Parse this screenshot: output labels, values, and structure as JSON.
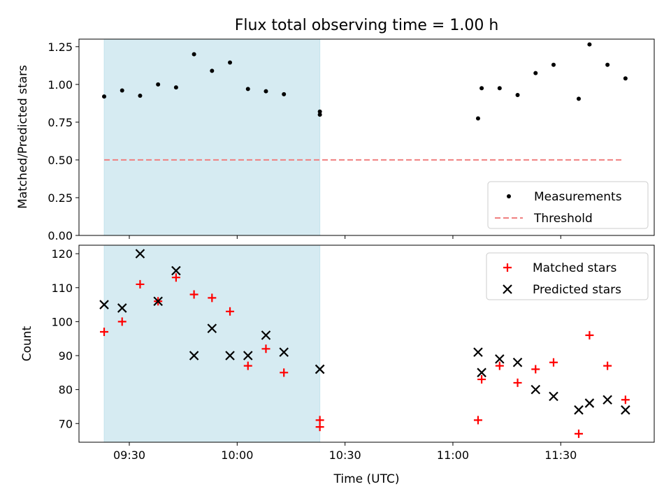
{
  "chart_data": [
    {
      "type": "scatter",
      "title": "Flux total observing time = 1.00 h",
      "xlabel": "",
      "ylabel": "Matched/Predicted stars",
      "ylim": [
        0,
        1.3
      ],
      "yticks": [
        0,
        0.25,
        0.5,
        0.75,
        1.0,
        1.25
      ],
      "ytick_labels": [
        "0.00",
        "0.25",
        "0.50",
        "0.75",
        "1.00",
        "1.25"
      ],
      "shaded_region": {
        "x_start": "09:23",
        "x_end": "10:23",
        "color": "#add8e6"
      },
      "threshold": {
        "value": 0.5,
        "x_start": "09:23",
        "x_end": "11:47",
        "color": "#f08080"
      },
      "legend": {
        "position": "bottom-right",
        "entries": [
          "Measurements",
          "Threshold"
        ]
      },
      "series": [
        {
          "name": "Measurements",
          "x": [
            "09:23",
            "09:28",
            "09:33",
            "09:38",
            "09:43",
            "09:48",
            "09:53",
            "09:58",
            "10:03",
            "10:08",
            "10:13",
            "10:23",
            "10:23",
            "11:07",
            "11:08",
            "11:13",
            "11:18",
            "11:23",
            "11:28",
            "11:35",
            "11:38",
            "11:43",
            "11:48"
          ],
          "values": [
            0.92,
            0.96,
            0.925,
            1.0,
            0.98,
            1.2,
            1.09,
            1.145,
            0.97,
            0.955,
            0.935,
            0.8,
            0.82,
            0.775,
            0.975,
            0.975,
            0.93,
            1.075,
            1.13,
            0.905,
            1.265,
            1.13,
            1.04
          ]
        }
      ]
    },
    {
      "type": "scatter",
      "xlabel": "Time (UTC)",
      "ylabel": "Count",
      "ylim": [
        64.5,
        122.5
      ],
      "yticks": [
        70,
        80,
        90,
        100,
        110,
        120
      ],
      "ytick_labels": [
        "70",
        "80",
        "90",
        "100",
        "110",
        "120"
      ],
      "xticks": [
        "09:30",
        "10:00",
        "10:30",
        "11:00",
        "11:30"
      ],
      "xlim": [
        "09:16",
        "11:56"
      ],
      "shaded_region": {
        "x_start": "09:23",
        "x_end": "10:23",
        "color": "#add8e6"
      },
      "legend": {
        "position": "top-right",
        "entries": [
          "Matched stars",
          "Predicted stars"
        ]
      },
      "series": [
        {
          "name": "Matched stars",
          "color": "#ff0000",
          "marker": "plus",
          "x": [
            "09:23",
            "09:28",
            "09:33",
            "09:38",
            "09:43",
            "09:48",
            "09:53",
            "09:58",
            "10:03",
            "10:08",
            "10:13",
            "10:23",
            "10:23",
            "11:07",
            "11:08",
            "11:13",
            "11:18",
            "11:23",
            "11:28",
            "11:35",
            "11:38",
            "11:43",
            "11:48"
          ],
          "values": [
            97,
            100,
            111,
            106,
            113,
            108,
            107,
            103,
            87,
            92,
            85,
            69,
            71,
            71,
            83,
            87,
            82,
            86,
            88,
            67,
            96,
            87,
            77
          ]
        },
        {
          "name": "Predicted stars",
          "color": "#000000",
          "marker": "x",
          "x": [
            "09:23",
            "09:28",
            "09:33",
            "09:38",
            "09:43",
            "09:48",
            "09:53",
            "09:58",
            "10:03",
            "10:08",
            "10:13",
            "10:23",
            "10:23",
            "11:07",
            "11:08",
            "11:13",
            "11:18",
            "11:23",
            "11:28",
            "11:35",
            "11:38",
            "11:43",
            "11:48"
          ],
          "values": [
            105,
            104,
            120,
            106,
            115,
            90,
            98,
            90,
            90,
            96,
            91,
            86,
            86,
            91,
            85,
            89,
            88,
            80,
            78,
            74,
            76,
            77,
            74
          ]
        }
      ]
    }
  ]
}
